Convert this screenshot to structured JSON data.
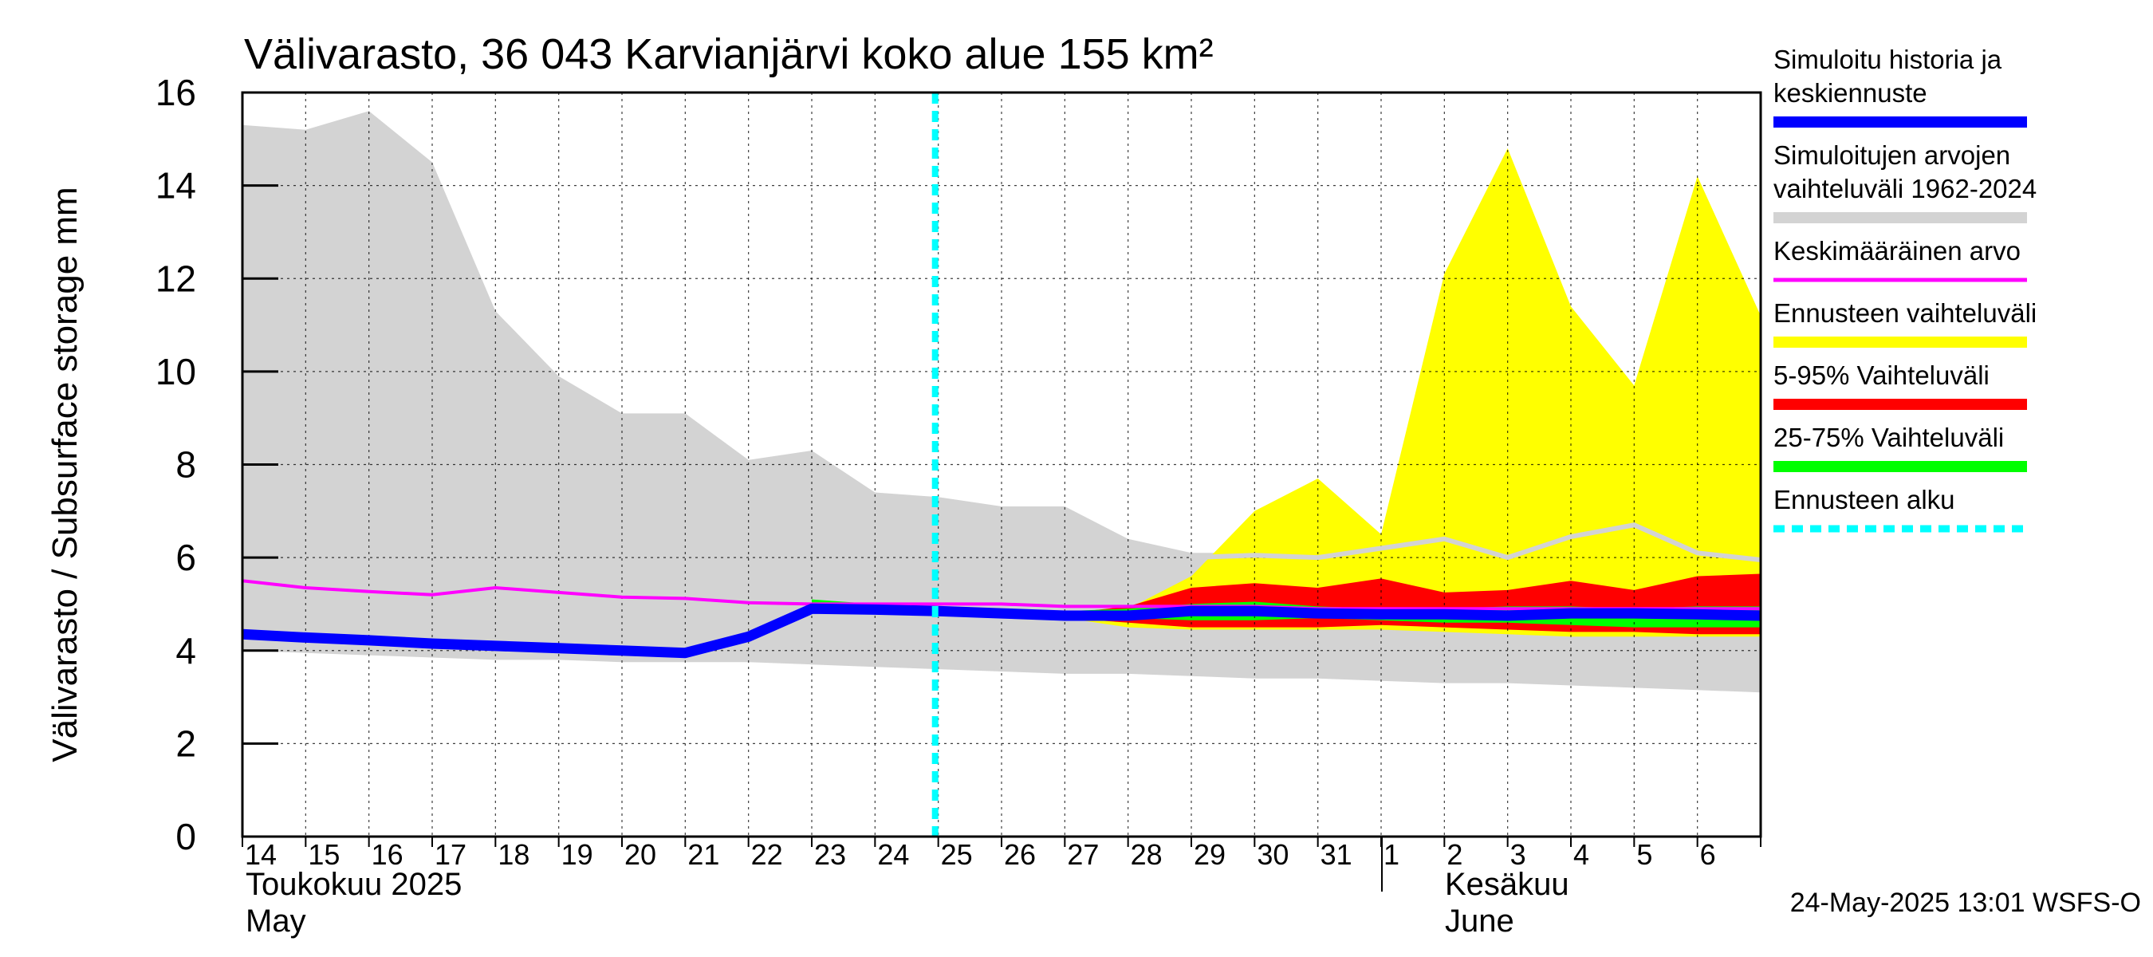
{
  "chart_data": {
    "type": "area",
    "title": "Välivarasto, 36 043 Karvianjärvi koko alue 155 km²",
    "ylabel": "Välivarasto / Subsurface storage  mm",
    "ylim": [
      0,
      16
    ],
    "yticks": [
      "0",
      "2",
      "4",
      "6",
      "8",
      "10",
      "12",
      "14",
      "16"
    ],
    "x_start_day": "14",
    "x_days": [
      "14",
      "15",
      "16",
      "17",
      "18",
      "19",
      "20",
      "21",
      "22",
      "23",
      "24",
      "25",
      "26",
      "27",
      "28",
      "29",
      "30",
      "31",
      "1",
      "2",
      "3",
      "4",
      "5",
      "6"
    ],
    "month_labels": {
      "may_fi": "Toukokuu  2025",
      "may_en": "May",
      "june_fi": "Kesäkuu",
      "june_en": "June"
    },
    "timestamp": "24-May-2025 13:01 WSFS-O",
    "forecast_start_day": 10.95,
    "grid": true,
    "legend_position": "right",
    "legend": [
      {
        "label": "Simuloitu historia ja keskiennuste",
        "lines": [
          "Simuloitu historia ja",
          "keskiennuste"
        ],
        "color": "#0000ff",
        "style": "thick"
      },
      {
        "label": "Simuloitujen arvojen vaihteluväli 1962-2024",
        "lines": [
          "Simuloitujen arvojen",
          "vaihteluväli 1962-2024"
        ],
        "color": "#d3d3d3",
        "style": "thick"
      },
      {
        "label": "Keskimääräinen arvo",
        "lines": [
          "Keskimääräinen arvo"
        ],
        "color": "#ff00ff",
        "style": "thin"
      },
      {
        "label": "Ennusteen vaihteluväli",
        "lines": [
          "Ennusteen vaihteluväli"
        ],
        "color": "#ffff00",
        "style": "thick"
      },
      {
        "label": "5-95% Vaihteluväli",
        "lines": [
          "5-95% Vaihteluväli"
        ],
        "color": "#ff0000",
        "style": "thick"
      },
      {
        "label": "25-75% Vaihteluväli",
        "lines": [
          "25-75% Vaihteluväli"
        ],
        "color": "#00ff00",
        "style": "thick"
      },
      {
        "label": "Ennusteen alku",
        "lines": [
          "Ennusteen alku"
        ],
        "color": "#00ffff",
        "style": "dashed"
      }
    ],
    "series": {
      "hist_range": {
        "x": [
          0,
          1,
          2,
          3,
          4,
          5,
          6,
          7,
          8,
          9,
          10,
          11,
          12,
          13,
          14,
          15,
          16,
          17,
          18,
          19,
          20,
          21,
          22,
          23,
          24
        ],
        "upper": [
          15.3,
          15.2,
          15.6,
          14.5,
          11.3,
          9.9,
          9.1,
          9.1,
          8.1,
          8.3,
          7.4,
          7.3,
          7.1,
          7.1,
          6.4,
          6.1,
          6.1,
          6.0,
          6.2,
          6.4,
          6.0,
          6.4,
          6.7,
          6.1,
          5.9
        ],
        "lower": [
          4.0,
          3.95,
          3.9,
          3.85,
          3.8,
          3.8,
          3.75,
          3.75,
          3.75,
          3.7,
          3.65,
          3.6,
          3.55,
          3.5,
          3.5,
          3.45,
          3.4,
          3.4,
          3.35,
          3.3,
          3.3,
          3.25,
          3.2,
          3.15,
          3.1
        ]
      },
      "hist_range_upper_line": {
        "x": [
          15,
          16,
          17,
          18,
          19,
          20,
          21,
          22,
          23,
          24
        ],
        "y": [
          6.0,
          6.05,
          6.0,
          6.2,
          6.4,
          6.0,
          6.45,
          6.7,
          6.1,
          5.95
        ]
      },
      "forecast_range": {
        "x": [
          10,
          11,
          12,
          13,
          14,
          15,
          16,
          17,
          18,
          19,
          20,
          21,
          22,
          23,
          24
        ],
        "upper": [
          4.9,
          4.9,
          4.85,
          4.8,
          4.9,
          5.6,
          7.0,
          7.7,
          6.5,
          12.1,
          14.8,
          11.4,
          9.7,
          14.2,
          11.2
        ],
        "lower": [
          4.9,
          4.85,
          4.8,
          4.7,
          4.5,
          4.45,
          4.45,
          4.45,
          4.45,
          4.4,
          4.35,
          4.3,
          4.3,
          4.3,
          4.3
        ]
      },
      "p5_95": {
        "x": [
          10,
          11,
          12,
          13,
          14,
          15,
          16,
          17,
          18,
          19,
          20,
          21,
          22,
          23,
          24
        ],
        "upper": [
          4.9,
          4.9,
          4.85,
          4.8,
          4.95,
          5.35,
          5.45,
          5.35,
          5.55,
          5.25,
          5.3,
          5.5,
          5.3,
          5.6,
          5.65
        ],
        "lower": [
          4.9,
          4.85,
          4.8,
          4.7,
          4.6,
          4.5,
          4.5,
          4.5,
          4.55,
          4.5,
          4.45,
          4.4,
          4.4,
          4.35,
          4.35
        ]
      },
      "p25_75": {
        "x": [
          9,
          10,
          11,
          12,
          13,
          14,
          15,
          16,
          17,
          18,
          19,
          20,
          21,
          22,
          23,
          24
        ],
        "upper": [
          5.1,
          5.0,
          4.95,
          4.9,
          4.85,
          4.9,
          5.0,
          5.05,
          4.95,
          4.9,
          4.9,
          4.95,
          4.95,
          4.9,
          4.95,
          4.95
        ],
        "lower": [
          4.85,
          4.85,
          4.8,
          4.75,
          4.7,
          4.7,
          4.65,
          4.65,
          4.7,
          4.65,
          4.6,
          4.6,
          4.55,
          4.5,
          4.5,
          4.5
        ]
      },
      "mean": {
        "x": [
          0,
          1,
          2,
          3,
          4,
          5,
          6,
          7,
          8,
          9,
          10,
          11,
          12,
          13,
          14,
          15,
          16,
          17,
          18,
          19,
          20,
          21,
          22,
          23,
          24
        ],
        "y": [
          5.5,
          5.35,
          5.27,
          5.2,
          5.35,
          5.25,
          5.15,
          5.12,
          5.03,
          5.0,
          5.0,
          5.0,
          5.0,
          4.95,
          4.95,
          4.95,
          4.95,
          4.9,
          4.9,
          4.9,
          4.9,
          4.9,
          4.9,
          4.9,
          4.9
        ]
      },
      "median_forecast": {
        "x": [
          0,
          1,
          2,
          3,
          4,
          5,
          6,
          7,
          8,
          9,
          10,
          11,
          12,
          13,
          14,
          15,
          16,
          17,
          18,
          19,
          20,
          21,
          22,
          23,
          24
        ],
        "y": [
          4.35,
          4.28,
          4.22,
          4.15,
          4.1,
          4.05,
          4.0,
          3.95,
          4.3,
          4.9,
          4.88,
          4.85,
          4.8,
          4.75,
          4.75,
          4.85,
          4.85,
          4.8,
          4.78,
          4.78,
          4.75,
          4.8,
          4.8,
          4.78,
          4.75
        ]
      }
    }
  }
}
